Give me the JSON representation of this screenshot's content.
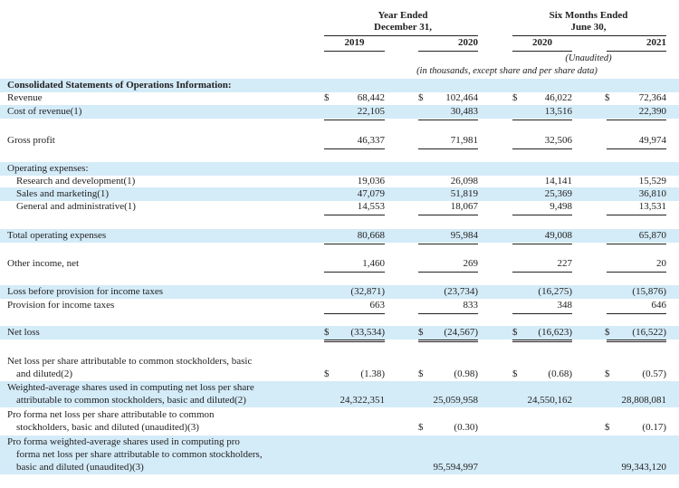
{
  "header": {
    "year_group": [
      "Year Ended",
      "December 31,"
    ],
    "six_group": [
      "Six Months Ended",
      "June 30,"
    ],
    "columns": [
      "2019",
      "2020",
      "2020",
      "2021"
    ],
    "unaudited": "(Unaudited)",
    "units_note": "(in thousands, except share and per share data)"
  },
  "rows": [
    {
      "label": [
        "Consolidated Statements of Operations Information:"
      ],
      "bold": true,
      "values": []
    },
    {
      "label": [
        "Revenue"
      ],
      "dollar": true,
      "values": [
        "68,442",
        "102,464",
        "46,022",
        "72,364"
      ]
    },
    {
      "label": [
        "Cost of revenue(1)"
      ],
      "values": [
        "22,105",
        "30,483",
        "13,516",
        "22,390"
      ],
      "underline": "single"
    },
    {
      "label": [
        "Gross profit"
      ],
      "values": [
        "46,337",
        "71,981",
        "32,506",
        "49,974"
      ],
      "underline": "single"
    },
    {
      "label": [
        "Operating expenses:"
      ],
      "values": []
    },
    {
      "label": [
        "Research and development(1)"
      ],
      "indent": true,
      "values": [
        "19,036",
        "26,098",
        "14,141",
        "15,529"
      ]
    },
    {
      "label": [
        "Sales and marketing(1)"
      ],
      "indent": true,
      "values": [
        "47,079",
        "51,819",
        "25,369",
        "36,810"
      ]
    },
    {
      "label": [
        "General and administrative(1)"
      ],
      "indent": true,
      "values": [
        "14,553",
        "18,067",
        "9,498",
        "13,531"
      ],
      "underline": "single"
    },
    {
      "label": [
        "Total operating expenses"
      ],
      "values": [
        "80,668",
        "95,984",
        "49,008",
        "65,870"
      ],
      "underline": "single"
    },
    {
      "label": [
        "Other income, net"
      ],
      "values": [
        "1,460",
        "269",
        "227",
        "20"
      ],
      "underline": "single"
    },
    {
      "label": [
        "Loss before provision for income taxes"
      ],
      "values": [
        "(32,871)",
        "(23,734)",
        "(16,275)",
        "(15,876)"
      ]
    },
    {
      "label": [
        "Provision for income taxes"
      ],
      "values": [
        "663",
        "833",
        "348",
        "646"
      ],
      "underline": "single"
    },
    {
      "label": [
        "Net loss"
      ],
      "dollar": true,
      "values": [
        "(33,534)",
        "(24,567)",
        "(16,623)",
        "(16,522)"
      ],
      "underline": "double"
    },
    {
      "label": [
        "Net loss per share attributable to common stockholders, basic",
        "and diluted(2)"
      ],
      "dollar": true,
      "values": [
        "(1.38)",
        "(0.98)",
        "(0.68)",
        "(0.57)"
      ]
    },
    {
      "label": [
        "Weighted-average shares used in computing net loss per share",
        "attributable to common stockholders, basic and diluted(2)"
      ],
      "values": [
        "24,322,351",
        "25,059,958",
        "24,550,162",
        "28,808,081"
      ]
    },
    {
      "label": [
        "Pro forma net loss per share attributable to common",
        "stockholders, basic and diluted (unaudited)(3)"
      ],
      "dollar_cols": [
        1,
        3
      ],
      "values": [
        "",
        "(0.30)",
        "",
        "(0.17)"
      ]
    },
    {
      "label": [
        "Pro forma weighted-average shares used in computing pro",
        "forma net loss per share attributable to common stockholders,",
        "basic and diluted (unaudited)(3)"
      ],
      "values": [
        "",
        "95,594,997",
        "",
        "99,343,120"
      ]
    }
  ]
}
